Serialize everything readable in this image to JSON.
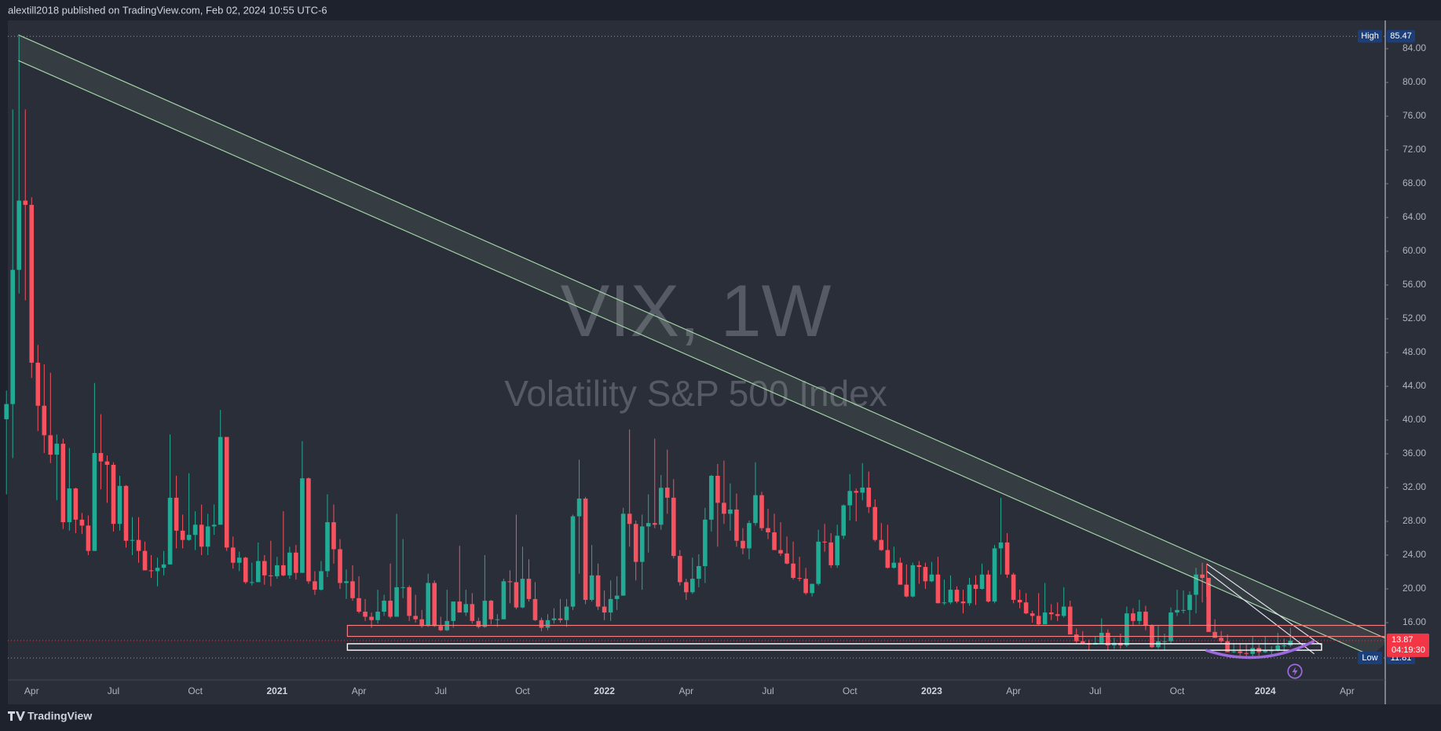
{
  "header": "alextill2018 published on TradingView.com, Feb 02, 2024 10:55 UTC-6",
  "footer": "TradingView",
  "chart_data": {
    "type": "candlestick",
    "title": "VIX, 1W",
    "subtitle": "Volatility S&P 500 Index",
    "up_color": "#22ab94",
    "down_color": "#f7525f",
    "grid": false,
    "ylim": [
      9.21,
      87.35
    ],
    "yticks": [
      {
        "value": 16,
        "label": "16.00"
      },
      {
        "value": 20,
        "label": "20.00"
      },
      {
        "value": 24,
        "label": "24.00"
      },
      {
        "value": 28,
        "label": "28.00"
      },
      {
        "value": 32,
        "label": "32.00"
      },
      {
        "value": 36,
        "label": "36.00"
      },
      {
        "value": 40,
        "label": "40.00"
      },
      {
        "value": 44,
        "label": "44.00"
      },
      {
        "value": 48,
        "label": "48.00"
      },
      {
        "value": 52,
        "label": "52.00"
      },
      {
        "value": 56,
        "label": "56.00"
      },
      {
        "value": 60,
        "label": "60.00"
      },
      {
        "value": 64,
        "label": "64.00"
      },
      {
        "value": 68,
        "label": "68.00"
      },
      {
        "value": 72,
        "label": "72.00"
      },
      {
        "value": 76,
        "label": "76.00"
      },
      {
        "value": 80,
        "label": "80.00"
      },
      {
        "value": 84,
        "label": "84.00"
      }
    ],
    "price_markers": [
      {
        "label": "High",
        "value": 85.47,
        "color": "#1c3f7a"
      },
      {
        "label": "Low",
        "value": 11.81,
        "color": "#1c3f7a"
      }
    ],
    "last_price": {
      "value": 13.87,
      "countdown": "04:19:30",
      "color": "#f23645"
    },
    "categories": [
      null,
      null,
      null,
      null,
      "Apr",
      null,
      null,
      null,
      null,
      null,
      null,
      null,
      null,
      null,
      null,
      null,
      null,
      "Jul",
      null,
      null,
      null,
      null,
      null,
      null,
      null,
      null,
      null,
      null,
      null,
      null,
      "Oct",
      null,
      null,
      null,
      null,
      null,
      null,
      null,
      null,
      null,
      null,
      null,
      null,
      "2021",
      null,
      null,
      null,
      null,
      null,
      null,
      null,
      null,
      null,
      null,
      null,
      null,
      "Apr",
      null,
      null,
      null,
      null,
      null,
      null,
      null,
      null,
      null,
      null,
      null,
      null,
      "Jul",
      null,
      null,
      null,
      null,
      null,
      null,
      null,
      null,
      null,
      null,
      null,
      null,
      "Oct",
      null,
      null,
      null,
      null,
      null,
      null,
      null,
      null,
      null,
      null,
      null,
      null,
      "2022",
      null,
      null,
      null,
      null,
      null,
      null,
      null,
      null,
      null,
      null,
      null,
      null,
      "Apr",
      null,
      null,
      null,
      null,
      null,
      null,
      null,
      null,
      null,
      null,
      null,
      null,
      "Jul",
      null,
      null,
      null,
      null,
      null,
      null,
      null,
      null,
      null,
      null,
      null,
      null,
      "Oct",
      null,
      null,
      null,
      null,
      null,
      null,
      null,
      null,
      null,
      null,
      null,
      null,
      "2023",
      null,
      null,
      null,
      null,
      null,
      null,
      null,
      null,
      null,
      null,
      null,
      null,
      "Apr",
      null,
      null,
      null,
      null,
      null,
      null,
      null,
      null,
      null,
      null,
      null,
      null,
      "Jul",
      null,
      null,
      null,
      null,
      null,
      null,
      null,
      null,
      null,
      null,
      null,
      null,
      "Oct",
      null,
      null,
      null,
      null,
      null,
      null,
      null,
      null,
      null,
      null,
      null,
      null,
      null,
      "2024",
      null,
      null,
      null,
      null,
      null,
      null,
      null,
      null,
      null,
      null,
      null,
      null,
      "Apr",
      null,
      null,
      null,
      null,
      null
    ],
    "ohlc": [
      [
        40.1,
        43.5,
        31.2,
        41.9
      ],
      [
        41.9,
        76.8,
        35.5,
        57.8
      ],
      [
        57.8,
        85.47,
        55.0,
        66.0
      ],
      [
        66.0,
        76.8,
        54.2,
        65.5
      ],
      [
        65.5,
        66.4,
        45.0,
        46.8
      ],
      [
        46.8,
        48.9,
        38.7,
        41.7
      ],
      [
        41.7,
        46.6,
        36.1,
        38.2
      ],
      [
        38.2,
        45.6,
        34.9,
        35.9
      ],
      [
        35.9,
        38.3,
        30.5,
        37.2
      ],
      [
        37.2,
        37.8,
        27.1,
        27.9
      ],
      [
        27.9,
        36.7,
        26.9,
        31.9
      ],
      [
        31.9,
        32.0,
        26.6,
        28.2
      ],
      [
        28.2,
        29.0,
        26.5,
        27.5
      ],
      [
        27.5,
        28.7,
        24.0,
        24.5
      ],
      [
        24.5,
        44.4,
        24.5,
        36.1
      ],
      [
        36.1,
        40.7,
        31.8,
        35.1
      ],
      [
        35.1,
        35.8,
        30.2,
        34.7
      ],
      [
        34.7,
        35.0,
        26.8,
        27.7
      ],
      [
        27.7,
        33.4,
        26.9,
        32.2
      ],
      [
        32.2,
        32.3,
        24.9,
        25.7
      ],
      [
        25.7,
        28.5,
        24.0,
        25.8
      ],
      [
        25.8,
        28.5,
        23.1,
        24.5
      ],
      [
        24.5,
        25.6,
        22.2,
        22.2
      ],
      [
        22.2,
        24.0,
        21.3,
        22.1
      ],
      [
        22.1,
        23.7,
        20.3,
        22.5
      ],
      [
        22.5,
        24.5,
        21.6,
        22.9
      ],
      [
        22.9,
        38.3,
        22.9,
        30.8
      ],
      [
        30.8,
        33.4,
        24.8,
        26.9
      ],
      [
        26.9,
        28.8,
        24.8,
        25.8
      ],
      [
        25.8,
        33.7,
        25.7,
        26.4
      ],
      [
        26.4,
        29.2,
        24.6,
        27.6
      ],
      [
        27.6,
        30.0,
        24.0,
        25.0
      ],
      [
        25.0,
        28.9,
        24.0,
        27.4
      ],
      [
        27.4,
        30.0,
        26.4,
        27.6
      ],
      [
        27.6,
        41.2,
        27.6,
        38.0
      ],
      [
        38.0,
        38.0,
        24.5,
        24.9
      ],
      [
        24.9,
        26.2,
        22.4,
        23.1
      ],
      [
        23.1,
        24.4,
        22.1,
        23.7
      ],
      [
        23.7,
        23.8,
        20.6,
        20.8
      ],
      [
        20.8,
        23.1,
        20.4,
        20.8
      ],
      [
        20.8,
        25.5,
        20.8,
        23.3
      ],
      [
        23.3,
        24.0,
        20.5,
        21.6
      ],
      [
        21.6,
        25.7,
        20.3,
        21.5
      ],
      [
        21.5,
        23.8,
        21.2,
        22.8
      ],
      [
        22.8,
        29.2,
        21.5,
        21.6
      ],
      [
        21.6,
        25.0,
        21.2,
        24.3
      ],
      [
        24.3,
        25.2,
        21.1,
        21.9
      ],
      [
        21.9,
        37.5,
        21.9,
        33.1
      ],
      [
        33.1,
        33.2,
        20.6,
        20.9
      ],
      [
        20.9,
        22.1,
        19.3,
        19.9
      ],
      [
        19.9,
        23.3,
        19.8,
        22.1
      ],
      [
        22.1,
        31.2,
        21.4,
        27.9
      ],
      [
        27.9,
        30.0,
        23.0,
        24.7
      ],
      [
        24.7,
        25.9,
        20.0,
        20.7
      ],
      [
        20.7,
        22.3,
        18.8,
        20.9
      ],
      [
        20.9,
        22.8,
        18.6,
        18.9
      ],
      [
        18.9,
        21.5,
        17.1,
        17.3
      ],
      [
        17.3,
        18.8,
        16.2,
        16.7
      ],
      [
        16.7,
        17.2,
        15.4,
        16.3
      ],
      [
        16.3,
        19.9,
        15.9,
        17.3
      ],
      [
        17.3,
        19.3,
        16.8,
        18.6
      ],
      [
        18.6,
        23.0,
        16.5,
        16.7
      ],
      [
        16.7,
        28.9,
        16.7,
        20.2
      ],
      [
        20.2,
        25.9,
        18.9,
        20.2
      ],
      [
        20.2,
        20.4,
        16.2,
        16.8
      ],
      [
        16.8,
        19.3,
        16.0,
        16.4
      ],
      [
        16.4,
        17.5,
        15.4,
        15.6
      ],
      [
        15.6,
        21.8,
        15.5,
        20.7
      ],
      [
        20.7,
        21.0,
        15.5,
        15.6
      ],
      [
        15.6,
        16.7,
        15.0,
        15.1
      ],
      [
        15.1,
        19.9,
        15.0,
        16.2
      ],
      [
        16.2,
        18.5,
        15.4,
        18.5
      ],
      [
        18.5,
        25.1,
        17.2,
        17.2
      ],
      [
        17.2,
        19.9,
        16.8,
        18.2
      ],
      [
        18.2,
        19.5,
        15.9,
        16.2
      ],
      [
        16.2,
        16.6,
        15.3,
        15.5
      ],
      [
        15.5,
        24.0,
        15.4,
        18.6
      ],
      [
        18.6,
        18.7,
        15.8,
        16.4
      ],
      [
        16.4,
        17.0,
        15.5,
        16.4
      ],
      [
        16.4,
        21.2,
        16.4,
        20.9
      ],
      [
        20.9,
        22.2,
        18.3,
        20.8
      ],
      [
        20.8,
        28.8,
        17.6,
        17.8
      ],
      [
        17.8,
        25.0,
        17.7,
        21.2
      ],
      [
        21.2,
        23.5,
        18.5,
        18.8
      ],
      [
        18.8,
        20.8,
        16.2,
        16.3
      ],
      [
        16.3,
        16.6,
        15.0,
        15.4
      ],
      [
        15.4,
        17.0,
        15.1,
        16.3
      ],
      [
        16.3,
        17.7,
        15.9,
        16.5
      ],
      [
        16.5,
        18.8,
        16.0,
        16.3
      ],
      [
        16.3,
        18.8,
        15.5,
        17.9
      ],
      [
        17.9,
        28.8,
        17.5,
        28.6
      ],
      [
        28.6,
        35.3,
        21.8,
        30.7
      ],
      [
        30.7,
        30.9,
        18.2,
        18.7
      ],
      [
        18.7,
        25.2,
        18.5,
        21.6
      ],
      [
        21.6,
        23.0,
        17.5,
        17.9
      ],
      [
        17.9,
        19.8,
        16.3,
        17.2
      ],
      [
        17.2,
        21.0,
        16.2,
        18.8
      ],
      [
        18.8,
        21.5,
        17.5,
        19.2
      ],
      [
        19.2,
        29.6,
        19.2,
        28.9
      ],
      [
        28.9,
        38.9,
        25.0,
        27.7
      ],
      [
        27.7,
        28.1,
        21.0,
        23.2
      ],
      [
        23.2,
        28.8,
        19.9,
        27.4
      ],
      [
        27.4,
        31.2,
        24.3,
        27.8
      ],
      [
        27.8,
        37.8,
        27.2,
        27.6
      ],
      [
        27.6,
        33.5,
        27.0,
        31.98
      ],
      [
        32.0,
        36.5,
        28.9,
        30.8
      ],
      [
        30.8,
        33.0,
        23.6,
        23.9
      ],
      [
        23.9,
        24.6,
        20.4,
        20.8
      ],
      [
        20.8,
        21.2,
        18.7,
        19.6
      ],
      [
        19.6,
        23.7,
        19.4,
        21.2
      ],
      [
        21.2,
        24.1,
        20.2,
        22.7
      ],
      [
        22.7,
        29.6,
        20.7,
        28.2
      ],
      [
        28.2,
        33.5,
        26.8,
        33.4
      ],
      [
        33.4,
        34.8,
        25.0,
        30.2
      ],
      [
        30.2,
        35.2,
        27.7,
        28.9
      ],
      [
        28.9,
        32.5,
        26.9,
        29.4
      ],
      [
        29.4,
        31.3,
        25.0,
        25.7
      ],
      [
        25.7,
        27.2,
        24.1,
        24.8
      ],
      [
        24.8,
        28.1,
        23.5,
        27.8
      ],
      [
        27.8,
        35.0,
        27.5,
        31.1
      ],
      [
        31.1,
        31.5,
        26.9,
        27.2
      ],
      [
        27.2,
        29.5,
        25.9,
        26.7
      ],
      [
        26.7,
        28.9,
        24.6,
        24.6
      ],
      [
        24.6,
        27.9,
        23.9,
        24.2
      ],
      [
        24.2,
        26.2,
        22.9,
        23.0
      ],
      [
        23.0,
        25.6,
        21.1,
        21.3
      ],
      [
        21.3,
        23.8,
        20.9,
        21.2
      ],
      [
        21.2,
        22.5,
        19.3,
        19.5
      ],
      [
        19.5,
        20.6,
        19.1,
        20.6
      ],
      [
        20.6,
        27.0,
        20.4,
        25.6
      ],
      [
        25.6,
        27.7,
        24.4,
        25.5
      ],
      [
        25.5,
        26.6,
        22.5,
        22.8
      ],
      [
        22.8,
        27.6,
        22.5,
        26.3
      ],
      [
        26.3,
        30.0,
        25.9,
        29.9
      ],
      [
        29.9,
        33.6,
        28.1,
        31.6
      ],
      [
        31.6,
        31.9,
        28.0,
        31.4
      ],
      [
        31.4,
        34.9,
        30.5,
        32.0
      ],
      [
        32.0,
        33.9,
        29.0,
        29.7
      ],
      [
        29.7,
        30.6,
        25.6,
        25.8
      ],
      [
        25.8,
        27.8,
        24.5,
        24.6
      ],
      [
        24.6,
        27.6,
        22.4,
        22.5
      ],
      [
        22.5,
        25.0,
        22.4,
        23.1
      ],
      [
        23.1,
        23.7,
        20.5,
        20.5
      ],
      [
        20.5,
        22.9,
        19.0,
        19.1
      ],
      [
        19.1,
        23.1,
        19.0,
        22.8
      ],
      [
        22.8,
        23.3,
        20.6,
        22.6
      ],
      [
        22.6,
        23.1,
        20.0,
        20.9
      ],
      [
        20.9,
        23.2,
        20.8,
        21.7
      ],
      [
        21.7,
        23.8,
        18.3,
        18.3
      ],
      [
        18.3,
        21.1,
        18.1,
        18.4
      ],
      [
        18.4,
        21.6,
        18.2,
        19.9
      ],
      [
        19.9,
        20.3,
        18.3,
        18.5
      ],
      [
        18.5,
        19.9,
        17.1,
        18.3
      ],
      [
        18.3,
        21.3,
        18.0,
        20.5
      ],
      [
        20.5,
        21.6,
        18.1,
        20.0
      ],
      [
        20.0,
        23.0,
        19.9,
        21.7
      ],
      [
        21.7,
        22.2,
        18.4,
        18.5
      ],
      [
        18.5,
        25.2,
        18.3,
        24.8
      ],
      [
        24.8,
        30.8,
        21.7,
        25.5
      ],
      [
        25.5,
        26.6,
        21.3,
        21.7
      ],
      [
        21.7,
        21.9,
        18.3,
        18.7
      ],
      [
        18.7,
        19.9,
        17.7,
        18.4
      ],
      [
        18.4,
        19.5,
        17.0,
        17.1
      ],
      [
        17.1,
        17.4,
        16.0,
        16.8
      ],
      [
        16.8,
        19.5,
        15.7,
        15.8
      ],
      [
        15.8,
        20.7,
        15.8,
        17.2
      ],
      [
        17.2,
        18.2,
        16.3,
        17.0
      ],
      [
        17.0,
        18.4,
        16.2,
        16.8
      ],
      [
        16.8,
        20.2,
        16.6,
        17.9
      ],
      [
        17.9,
        18.6,
        14.6,
        14.6
      ],
      [
        14.6,
        15.3,
        13.6,
        13.8
      ],
      [
        13.8,
        15.0,
        13.5,
        13.5
      ],
      [
        13.5,
        14.0,
        12.8,
        13.4
      ],
      [
        13.4,
        14.4,
        13.4,
        13.6
      ],
      [
        13.6,
        16.5,
        13.5,
        14.8
      ],
      [
        14.8,
        15.2,
        12.8,
        13.3
      ],
      [
        13.3,
        14.2,
        12.9,
        13.6
      ],
      [
        13.6,
        14.7,
        12.9,
        13.3
      ],
      [
        13.3,
        17.9,
        13.1,
        17.1
      ],
      [
        17.1,
        17.7,
        15.6,
        16.2
      ],
      [
        16.2,
        18.7,
        15.8,
        17.3
      ],
      [
        17.3,
        18.0,
        15.1,
        15.7
      ],
      [
        15.7,
        15.8,
        13.0,
        13.1
      ],
      [
        13.1,
        15.7,
        12.9,
        13.8
      ],
      [
        13.8,
        14.7,
        12.8,
        13.8
      ],
      [
        13.8,
        17.8,
        13.5,
        17.2
      ],
      [
        17.2,
        19.9,
        16.8,
        17.5
      ],
      [
        17.5,
        19.8,
        17.1,
        17.5
      ],
      [
        17.5,
        19.7,
        15.8,
        19.3
      ],
      [
        19.3,
        22.5,
        17.1,
        21.7
      ],
      [
        21.7,
        23.1,
        18.4,
        21.3
      ],
      [
        21.3,
        21.3,
        14.9,
        14.9
      ],
      [
        14.9,
        16.4,
        14.2,
        14.2
      ],
      [
        14.2,
        15.0,
        13.6,
        13.8
      ],
      [
        13.8,
        14.6,
        12.5,
        12.5
      ],
      [
        12.5,
        13.6,
        12.4,
        12.6
      ],
      [
        12.6,
        13.5,
        12.1,
        12.4
      ],
      [
        12.4,
        13.4,
        11.81,
        12.3
      ],
      [
        12.3,
        14.3,
        12.0,
        13.0
      ],
      [
        13.0,
        13.4,
        12.1,
        12.5
      ],
      [
        12.5,
        14.4,
        12.4,
        12.7
      ],
      [
        12.7,
        13.2,
        12.2,
        12.7
      ],
      [
        12.7,
        14.8,
        12.6,
        13.3
      ],
      [
        13.3,
        14.1,
        12.5,
        13.3
      ],
      [
        13.3,
        15.4,
        13.1,
        13.87
      ],
      null,
      null,
      null,
      null,
      null,
      null,
      null,
      null,
      null,
      null,
      null,
      null,
      null,
      null
    ]
  }
}
